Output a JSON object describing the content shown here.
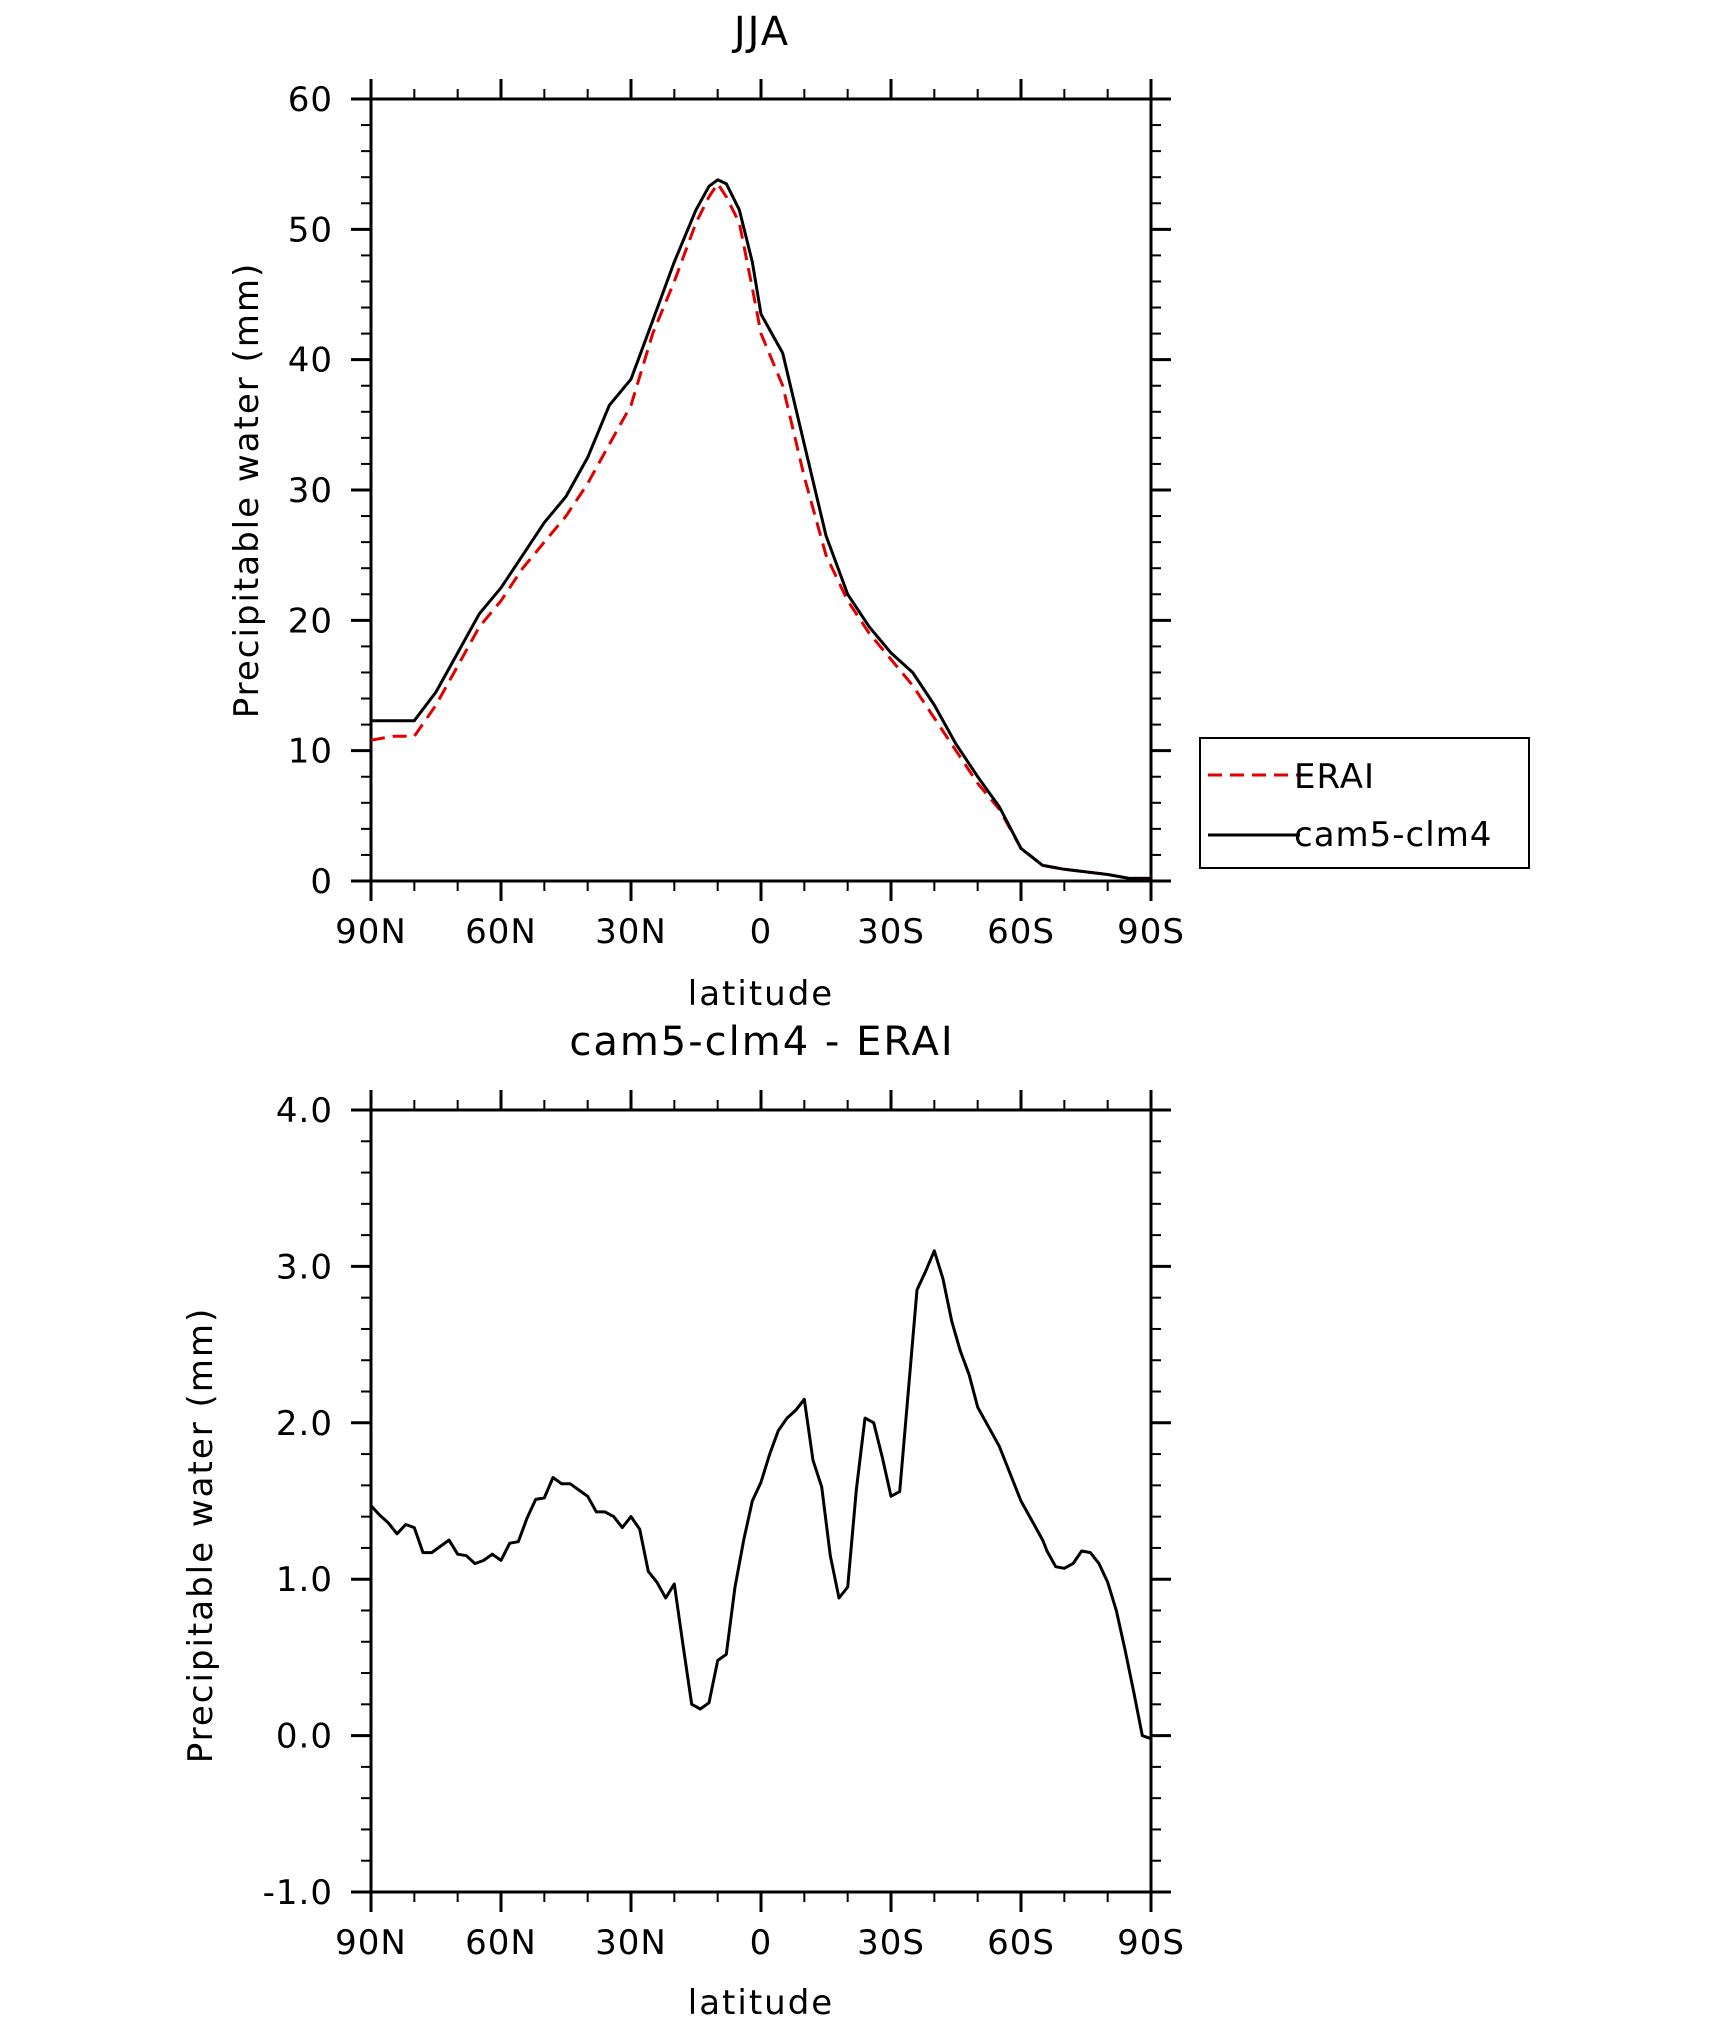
{
  "chart_data": [
    {
      "type": "line",
      "title": "JJA",
      "xlabel": "latitude",
      "ylabel": "Precipitable water (mm)",
      "xlim": [
        90,
        -90
      ],
      "ylim": [
        0,
        60
      ],
      "xticks": [
        90,
        60,
        30,
        0,
        -30,
        -60,
        -90
      ],
      "xtick_labels": [
        "90N",
        "60N",
        "30N",
        "0",
        "30S",
        "60S",
        "90S"
      ],
      "yticks": [
        0,
        10,
        20,
        30,
        40,
        50,
        60
      ],
      "ytick_labels": [
        "0",
        "10",
        "20",
        "30",
        "40",
        "50",
        "60"
      ],
      "grid": false,
      "legend": "right",
      "series": [
        {
          "name": "ERAI",
          "color": "#e00000",
          "dash": "dashed",
          "x": [
            90,
            85,
            80,
            75,
            70,
            65,
            60,
            55,
            50,
            45,
            40,
            35,
            30,
            25,
            20,
            15,
            12,
            10,
            8,
            5,
            2,
            0,
            -5,
            -10,
            -15,
            -20,
            -25,
            -30,
            -35,
            -40,
            -45,
            -50,
            -55,
            -60,
            -65,
            -70,
            -75,
            -80,
            -85,
            -90
          ],
          "y": [
            10.8,
            11.1,
            11.1,
            13.5,
            16.5,
            19.5,
            21.5,
            24.0,
            26.0,
            28.0,
            30.5,
            33.5,
            36.5,
            42.0,
            46.0,
            50.5,
            52.5,
            53.5,
            52.5,
            50.5,
            45.5,
            42.0,
            38.0,
            31.0,
            25.0,
            21.5,
            19.0,
            17.0,
            15.0,
            12.5,
            10.0,
            7.5,
            5.5,
            2.5,
            1.2,
            0.9,
            0.7,
            0.5,
            0.2,
            0.2
          ]
        },
        {
          "name": "cam5-clm4",
          "color": "#000000",
          "dash": "solid",
          "x": [
            90,
            85,
            80,
            75,
            70,
            65,
            60,
            55,
            50,
            45,
            40,
            35,
            30,
            25,
            20,
            15,
            12,
            10,
            8,
            5,
            2,
            0,
            -5,
            -10,
            -15,
            -20,
            -25,
            -30,
            -35,
            -40,
            -45,
            -50,
            -55,
            -60,
            -65,
            -70,
            -75,
            -80,
            -85,
            -90
          ],
          "y": [
            12.3,
            12.3,
            12.3,
            14.5,
            17.5,
            20.5,
            22.5,
            25.0,
            27.5,
            29.5,
            32.5,
            36.5,
            38.5,
            43.0,
            47.5,
            51.5,
            53.3,
            53.8,
            53.5,
            51.5,
            47.5,
            43.5,
            40.5,
            33.5,
            26.5,
            22.0,
            19.5,
            17.5,
            16.0,
            13.5,
            10.5,
            8.0,
            5.7,
            2.5,
            1.2,
            0.9,
            0.7,
            0.5,
            0.2,
            0.2
          ]
        }
      ]
    },
    {
      "type": "line",
      "title": "cam5-clm4 - ERAI",
      "xlabel": "latitude",
      "ylabel": "Precipitable water (mm)",
      "xlim": [
        90,
        -90
      ],
      "ylim": [
        -1.0,
        4.0
      ],
      "xticks": [
        90,
        60,
        30,
        0,
        -30,
        -60,
        -90
      ],
      "xtick_labels": [
        "90N",
        "60N",
        "30N",
        "0",
        "30S",
        "60S",
        "90S"
      ],
      "yticks": [
        -1.0,
        0.0,
        1.0,
        2.0,
        3.0,
        4.0
      ],
      "ytick_labels": [
        "-1.0",
        "0.0",
        "1.0",
        "2.0",
        "3.0",
        "4.0"
      ],
      "grid": false,
      "series": [
        {
          "color": "#000000",
          "dash": "solid",
          "x": [
            90,
            88,
            86,
            84,
            82,
            80,
            78,
            76,
            74,
            72,
            70,
            68,
            66,
            64,
            62,
            60,
            58,
            56,
            54,
            52,
            50,
            48,
            46,
            44,
            42,
            40,
            38,
            36,
            34,
            32,
            30,
            28,
            26,
            24,
            22,
            20,
            18,
            16,
            14,
            12,
            10,
            8,
            6,
            4,
            2,
            0,
            -2,
            -4,
            -6,
            -8,
            -10,
            -12,
            -14,
            -16,
            -18,
            -20,
            -22,
            -24,
            -26,
            -28,
            -30,
            -32,
            -34,
            -36,
            -38,
            -40,
            -42,
            -44,
            -46,
            -48,
            -50,
            -55,
            -60,
            -65,
            -66,
            -68,
            -70,
            -72,
            -74,
            -76,
            -78,
            -80,
            -82,
            -84,
            -86,
            -88,
            -90
          ],
          "y": [
            1.47,
            1.41,
            1.36,
            1.29,
            1.35,
            1.33,
            1.17,
            1.17,
            1.21,
            1.25,
            1.16,
            1.15,
            1.1,
            1.12,
            1.16,
            1.12,
            1.23,
            1.24,
            1.39,
            1.51,
            1.52,
            1.65,
            1.61,
            1.61,
            1.57,
            1.53,
            1.43,
            1.43,
            1.4,
            1.33,
            1.4,
            1.32,
            1.05,
            0.98,
            0.88,
            0.97,
            0.58,
            0.2,
            0.17,
            0.21,
            0.48,
            0.52,
            0.95,
            1.25,
            1.5,
            1.62,
            1.8,
            1.95,
            2.03,
            2.08,
            2.15,
            1.76,
            1.59,
            1.15,
            0.88,
            0.95,
            1.57,
            2.03,
            2.0,
            1.78,
            1.53,
            1.56,
            2.2,
            2.85,
            2.97,
            3.1,
            2.92,
            2.65,
            2.46,
            2.31,
            2.1,
            1.85,
            1.5,
            1.25,
            1.18,
            1.08,
            1.07,
            1.1,
            1.18,
            1.17,
            1.1,
            0.98,
            0.8,
            0.55,
            0.28,
            0.0,
            -0.02
          ]
        }
      ]
    }
  ]
}
